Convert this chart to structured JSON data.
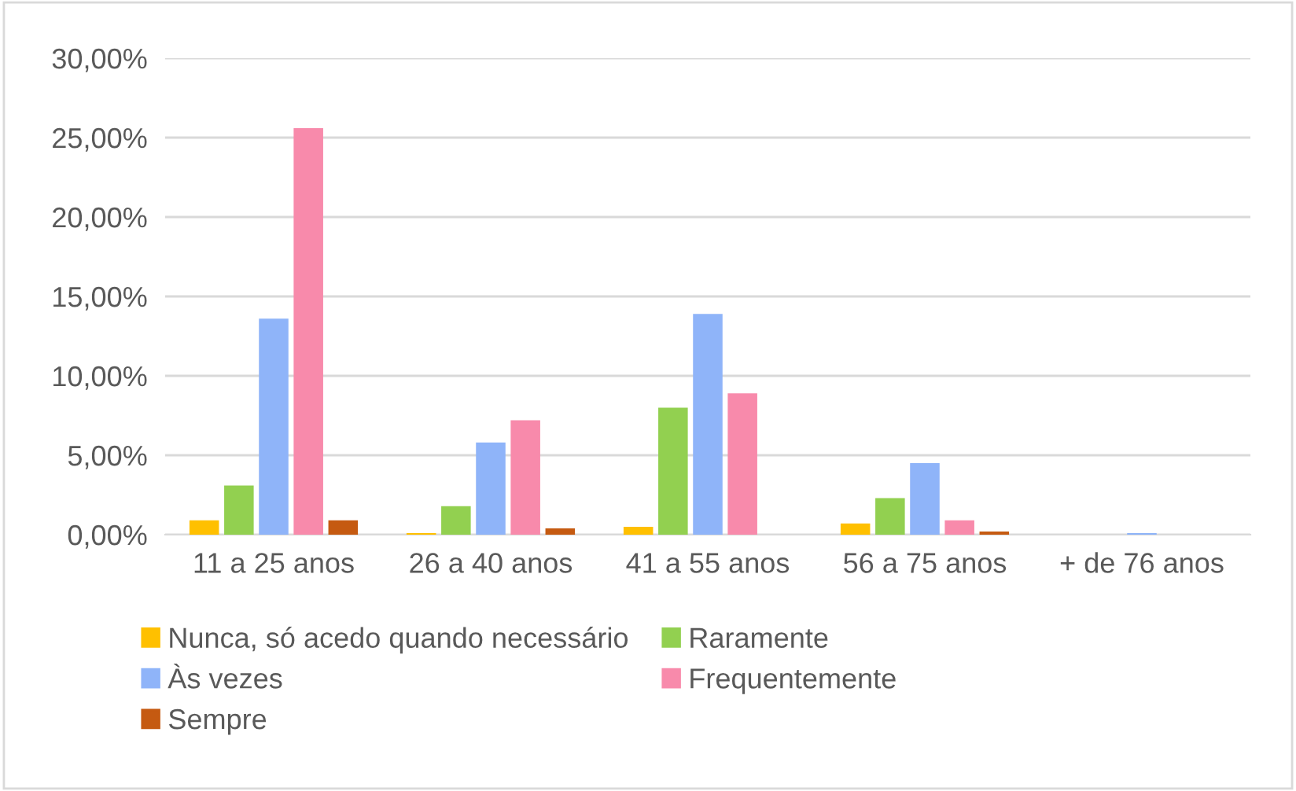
{
  "chart_data": {
    "type": "bar",
    "categories": [
      "11 a 25 anos",
      "26 a 40 anos",
      "41 a 55 anos",
      "56 a 75 anos",
      "+ de 76 anos"
    ],
    "series": [
      {
        "name": "Nunca, só acedo quando necessário",
        "color": "#ffc000",
        "values": [
          0.9,
          0.1,
          0.5,
          0.7,
          0
        ]
      },
      {
        "name": "Raramente",
        "color": "#92d050",
        "values": [
          3.1,
          1.8,
          8.0,
          2.3,
          0
        ]
      },
      {
        "name": "Às vezes",
        "color": "#8fb4f9",
        "values": [
          13.6,
          5.8,
          13.9,
          4.5,
          0.1
        ]
      },
      {
        "name": "Frequentemente",
        "color": "#f88aab",
        "values": [
          25.6,
          7.2,
          8.9,
          0.9,
          0
        ]
      },
      {
        "name": "Sempre",
        "color": "#c55a11",
        "values": [
          0.9,
          0.4,
          0,
          0.2,
          0
        ]
      }
    ],
    "ylim": [
      0,
      30
    ],
    "yticks": [
      {
        "value": 0,
        "label": "0,00%"
      },
      {
        "value": 5,
        "label": "5,00%"
      },
      {
        "value": 10,
        "label": "10,00%"
      },
      {
        "value": 15,
        "label": "15,00%"
      },
      {
        "value": 20,
        "label": "20,00%"
      },
      {
        "value": 25,
        "label": "25,00%"
      },
      {
        "value": 30,
        "label": "30,00%"
      }
    ],
    "grid": "y",
    "legend": "bottom"
  }
}
